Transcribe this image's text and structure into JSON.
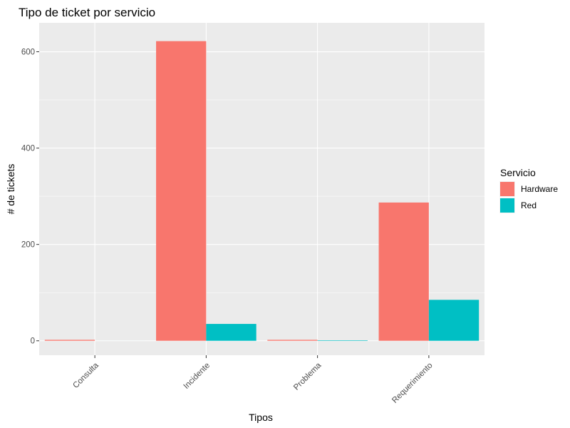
{
  "chart_data": {
    "type": "bar",
    "title": "Tipo de ticket por servicio",
    "xlabel": "Tipos",
    "ylabel": "# de tickets",
    "categories": [
      "Consulta",
      "Incidente",
      "Problema",
      "Requerimiento"
    ],
    "series": [
      {
        "name": "Hardware",
        "color": "#F8766D",
        "values": [
          2,
          622,
          2,
          287
        ]
      },
      {
        "name": "Red",
        "color": "#00BFC4",
        "values": [
          0,
          35,
          1,
          85
        ]
      }
    ],
    "yticks": [
      0,
      200,
      400,
      600
    ],
    "ylim": [
      -30,
      660
    ],
    "grid": true,
    "legend": {
      "title": "Servicio",
      "position": "right"
    },
    "background_color": "#EBEBEB",
    "grid_color": "#FFFFFF"
  }
}
